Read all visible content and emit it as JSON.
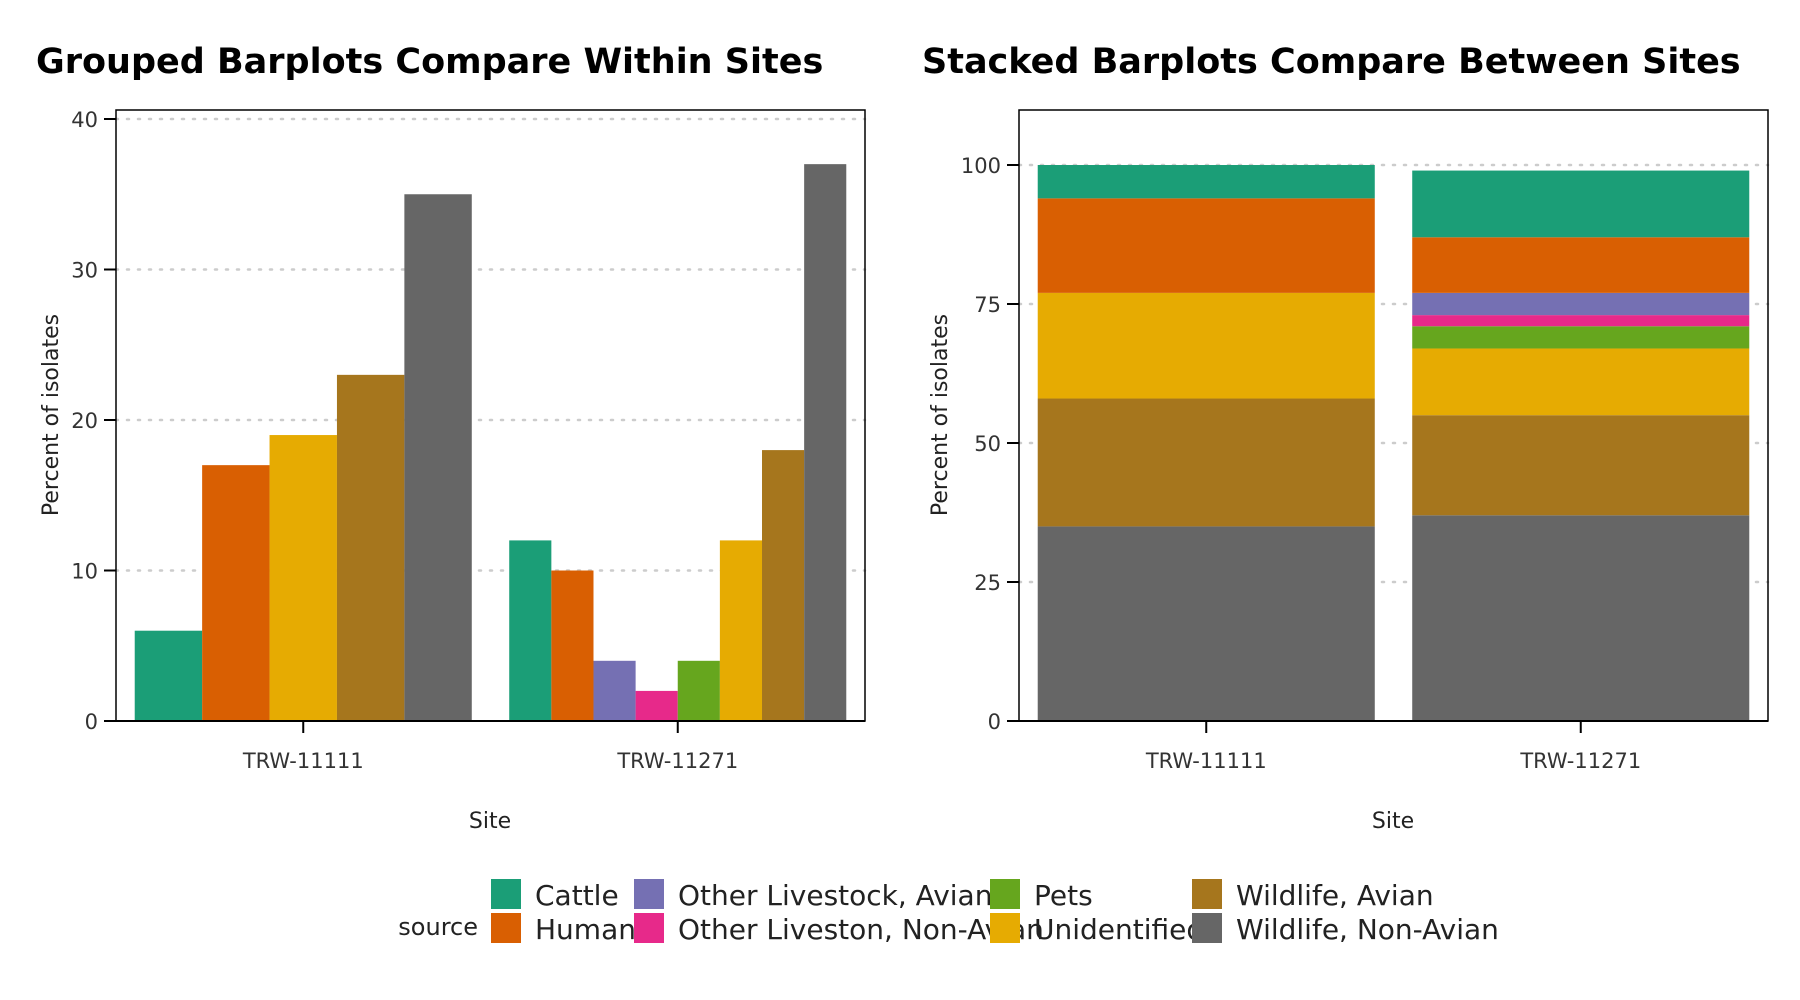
{
  "chart_data": [
    {
      "type": "bar",
      "title": "Grouped Barplots Compare Within Sites",
      "xlabel": "Site",
      "ylabel": "Percent of isolates",
      "categories": [
        "TRW-11111",
        "TRW-11271"
      ],
      "ylim": [
        0,
        40
      ],
      "yticks": [
        0,
        10,
        20,
        30,
        40
      ],
      "grid": "horizontal, dotted",
      "series": [
        {
          "name": "Cattle",
          "values": [
            6,
            12
          ]
        },
        {
          "name": "Human",
          "values": [
            17,
            10
          ]
        },
        {
          "name": "Other Livestock, Avian",
          "values": [
            null,
            4
          ]
        },
        {
          "name": "Other Liveston, Non-Avian",
          "values": [
            null,
            2
          ]
        },
        {
          "name": "Pets",
          "values": [
            null,
            4
          ]
        },
        {
          "name": "Unidentified",
          "values": [
            19,
            12
          ]
        },
        {
          "name": "Wildlife, Avian",
          "values": [
            23,
            18
          ]
        },
        {
          "name": "Wildlife, Non-Avian",
          "values": [
            35,
            37
          ]
        }
      ]
    },
    {
      "type": "bar",
      "stacked": true,
      "title": "Stacked Barplots Compare Between Sites",
      "xlabel": "Site",
      "ylabel": "Percent of isolates",
      "categories": [
        "TRW-11111",
        "TRW-11271"
      ],
      "ylim": [
        0,
        100
      ],
      "yticks": [
        0,
        25,
        50,
        75,
        100
      ],
      "grid": "horizontal, dotted",
      "series": [
        {
          "name": "Cattle",
          "values": [
            6,
            12
          ]
        },
        {
          "name": "Human",
          "values": [
            17,
            10
          ]
        },
        {
          "name": "Other Livestock, Avian",
          "values": [
            0,
            4
          ]
        },
        {
          "name": "Other Liveston, Non-Avian",
          "values": [
            0,
            2
          ]
        },
        {
          "name": "Pets",
          "values": [
            0,
            4
          ]
        },
        {
          "name": "Unidentified",
          "values": [
            19,
            12
          ]
        },
        {
          "name": "Wildlife, Avian",
          "values": [
            23,
            18
          ]
        },
        {
          "name": "Wildlife, Non-Avian",
          "values": [
            35,
            37
          ]
        }
      ]
    }
  ],
  "legend": {
    "title": "source",
    "position": "bottom",
    "items": [
      {
        "label": "Cattle",
        "color": "#1B9E77"
      },
      {
        "label": "Human",
        "color": "#D95F02"
      },
      {
        "label": "Other Livestock, Avian",
        "color": "#7570B3"
      },
      {
        "label": "Other Liveston, Non-Avian",
        "color": "#E7298A"
      },
      {
        "label": "Pets",
        "color": "#66A61E"
      },
      {
        "label": "Unidentified",
        "color": "#E6AB02"
      },
      {
        "label": "Wildlife, Avian",
        "color": "#A6761D"
      },
      {
        "label": "Wildlife, Non-Avian",
        "color": "#666666"
      }
    ]
  }
}
